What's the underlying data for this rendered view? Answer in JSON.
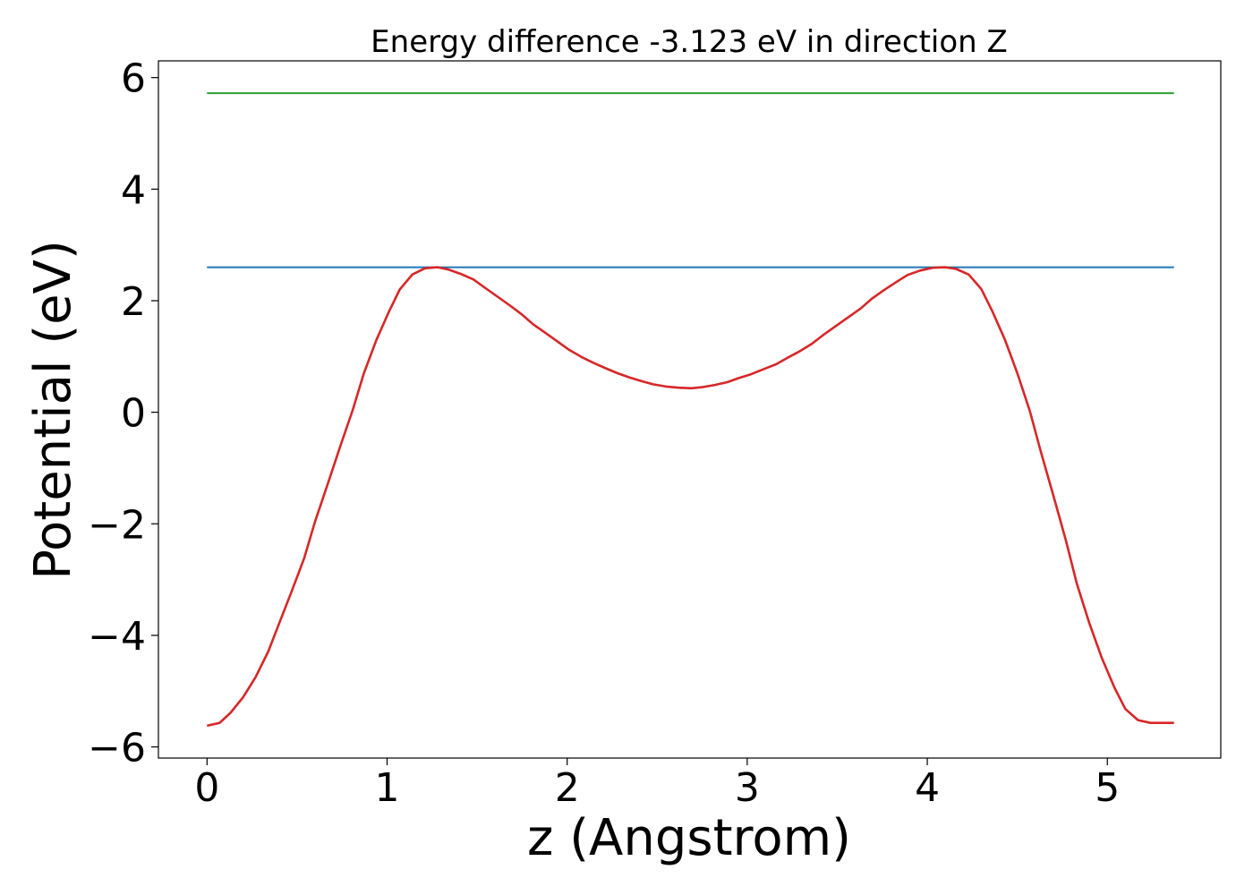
{
  "chart_data": {
    "type": "line",
    "title": "Energy difference -3.123 eV in direction Z",
    "xlabel": "z (Angstrom)",
    "ylabel": "Potential (eV)",
    "xlim": [
      -0.27,
      5.63
    ],
    "ylim": [
      -6.2,
      6.3
    ],
    "xticks": [
      0,
      1,
      2,
      3,
      4,
      5
    ],
    "xtick_labels": [
      "0",
      "1",
      "2",
      "3",
      "4",
      "5"
    ],
    "yticks": [
      -6,
      -4,
      -2,
      0,
      2,
      4,
      6
    ],
    "ytick_labels": [
      "−6",
      "−4",
      "−2",
      "0",
      "2",
      "4",
      "6"
    ],
    "grid": false,
    "series": [
      {
        "color": "#2ca02c",
        "x": [
          0,
          5.37
        ],
        "y": [
          5.72,
          5.72
        ]
      },
      {
        "color": "#1f77b4",
        "x": [
          0,
          5.37
        ],
        "y": [
          2.6,
          2.6
        ]
      },
      {
        "color": "#d62728",
        "x": [
          0,
          0.07,
          0.13,
          0.2,
          0.27,
          0.34,
          0.4,
          0.47,
          0.54,
          0.6,
          0.67,
          0.74,
          0.81,
          0.87,
          0.94,
          1.01,
          1.07,
          1.14,
          1.21,
          1.28,
          1.34,
          1.41,
          1.48,
          1.54,
          1.61,
          1.68,
          1.75,
          1.81,
          1.88,
          1.95,
          2.01,
          2.08,
          2.15,
          2.22,
          2.28,
          2.35,
          2.42,
          2.48,
          2.55,
          2.62,
          2.69,
          2.75,
          2.82,
          2.89,
          2.95,
          3.02,
          3.09,
          3.16,
          3.22,
          3.29,
          3.36,
          3.42,
          3.49,
          3.56,
          3.63,
          3.69,
          3.76,
          3.83,
          3.89,
          3.96,
          4.03,
          4.1,
          4.16,
          4.23,
          4.3,
          4.36,
          4.43,
          4.5,
          4.57,
          4.63,
          4.7,
          4.77,
          4.83,
          4.9,
          4.97,
          5.04,
          5.1,
          5.17,
          5.24,
          5.3,
          5.37
        ],
        "y": [
          -5.62,
          -5.57,
          -5.39,
          -5.11,
          -4.75,
          -4.29,
          -3.79,
          -3.21,
          -2.61,
          -1.96,
          -1.29,
          -0.61,
          0.05,
          0.69,
          1.29,
          1.8,
          2.2,
          2.47,
          2.58,
          2.6,
          2.56,
          2.48,
          2.38,
          2.24,
          2.08,
          1.92,
          1.75,
          1.58,
          1.42,
          1.26,
          1.12,
          0.99,
          0.88,
          0.78,
          0.7,
          0.62,
          0.55,
          0.5,
          0.46,
          0.44,
          0.43,
          0.45,
          0.49,
          0.54,
          0.61,
          0.68,
          0.77,
          0.86,
          0.97,
          1.09,
          1.23,
          1.38,
          1.54,
          1.7,
          1.86,
          2.03,
          2.19,
          2.34,
          2.46,
          2.54,
          2.59,
          2.6,
          2.57,
          2.47,
          2.21,
          1.82,
          1.31,
          0.7,
          0.02,
          -0.7,
          -1.49,
          -2.3,
          -3.07,
          -3.78,
          -4.41,
          -4.94,
          -5.32,
          -5.52,
          -5.57,
          -5.57,
          -5.57
        ]
      }
    ]
  }
}
